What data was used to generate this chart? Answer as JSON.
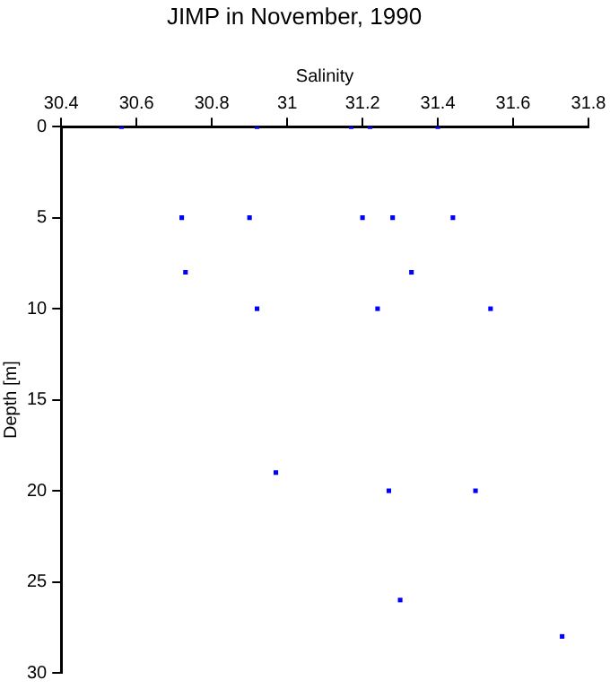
{
  "chart_data": {
    "type": "scatter",
    "title": "JIMP in November, 1990",
    "xlabel": "Salinity",
    "ylabel": "Depth [m]",
    "x": [
      30.56,
      30.92,
      31.17,
      31.22,
      31.4,
      30.72,
      30.9,
      31.2,
      31.28,
      31.44,
      30.73,
      31.33,
      30.92,
      31.24,
      31.54,
      30.97,
      31.27,
      31.5,
      31.3,
      31.73
    ],
    "series": [
      {
        "color": "#0000ff",
        "values": [
          0,
          0,
          0,
          0,
          0,
          5,
          5,
          5,
          5,
          5,
          8,
          8,
          10,
          10,
          10,
          19,
          20,
          20,
          26,
          28
        ]
      }
    ],
    "xlim": [
      30.4,
      31.8
    ],
    "xticks": [
      30.4,
      30.6,
      30.8,
      31,
      31.2,
      31.4,
      31.6,
      31.8
    ],
    "ylim": [
      30,
      0
    ],
    "yticks": [
      0,
      5,
      10,
      15,
      20,
      25,
      30
    ],
    "grid": false,
    "legend": false,
    "marker": "square"
  }
}
